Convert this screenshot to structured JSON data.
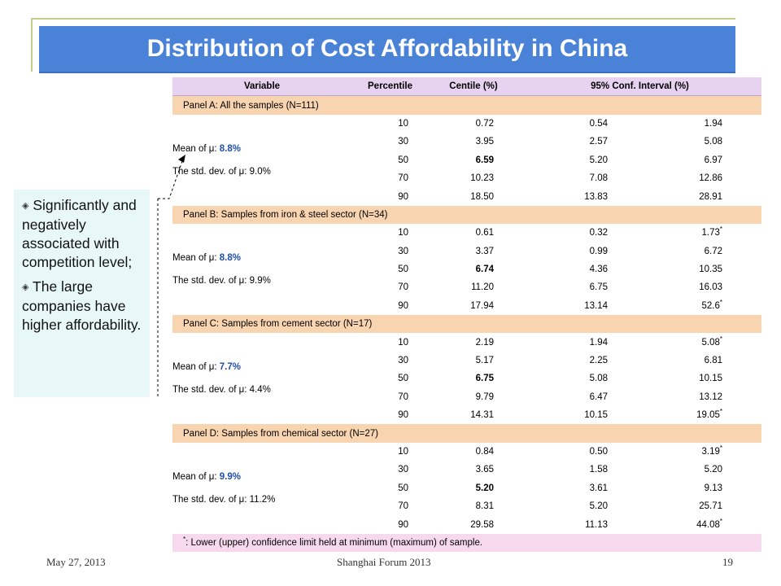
{
  "slide": {
    "title": "Distribution of Cost Affordability in China",
    "date": "May 27, 2013",
    "forum": "Shanghai Forum 2013",
    "page_number": "19"
  },
  "callout": {
    "bullets": [
      "Significantly and negatively associated with competition level;",
      "The large companies have higher affordability."
    ]
  },
  "table": {
    "headers": [
      "Variable",
      "Percentile",
      "Centile (%)",
      "95% Conf. Interval (%)"
    ],
    "panels": [
      {
        "title": "Panel A: All the samples (N=111)",
        "mean_label": "Mean of μ: ",
        "mean_value": "8.8%",
        "std_label": "The std. dev. of μ: 9.0%",
        "rows": [
          {
            "percentile": "10",
            "centile": "0.72",
            "lower": "0.54",
            "upper": "1.94",
            "star": ""
          },
          {
            "percentile": "30",
            "centile": "3.95",
            "lower": "2.57",
            "upper": "5.08",
            "star": ""
          },
          {
            "percentile": "50",
            "centile": "6.59",
            "lower": "5.20",
            "upper": "6.97",
            "star": ""
          },
          {
            "percentile": "70",
            "centile": "10.23",
            "lower": "7.08",
            "upper": "12.86",
            "star": ""
          },
          {
            "percentile": "90",
            "centile": "18.50",
            "lower": "13.83",
            "upper": "28.91",
            "star": ""
          }
        ]
      },
      {
        "title": "Panel B: Samples from iron & steel sector (N=34)",
        "mean_label": "Mean of μ: ",
        "mean_value": "8.8%",
        "std_label": "The std. dev. of μ: 9.9%",
        "rows": [
          {
            "percentile": "10",
            "centile": "0.61",
            "lower": "0.32",
            "upper": "1.73",
            "star": "*"
          },
          {
            "percentile": "30",
            "centile": "3.37",
            "lower": "0.99",
            "upper": "6.72",
            "star": ""
          },
          {
            "percentile": "50",
            "centile": "6.74",
            "lower": "4.36",
            "upper": "10.35",
            "star": ""
          },
          {
            "percentile": "70",
            "centile": "11.20",
            "lower": "6.75",
            "upper": "16.03",
            "star": ""
          },
          {
            "percentile": "90",
            "centile": "17.94",
            "lower": "13.14",
            "upper": "52.6",
            "star": "*"
          }
        ]
      },
      {
        "title": "Panel C: Samples from cement sector (N=17)",
        "mean_label": "Mean of μ: ",
        "mean_value": "7.7%",
        "std_label": "The std. dev. of μ: 4.4%",
        "rows": [
          {
            "percentile": "10",
            "centile": "2.19",
            "lower": "1.94",
            "upper": "5.08",
            "star": "*"
          },
          {
            "percentile": "30",
            "centile": "5.17",
            "lower": "2.25",
            "upper": "6.81",
            "star": ""
          },
          {
            "percentile": "50",
            "centile": "6.75",
            "lower": "5.08",
            "upper": "10.15",
            "star": ""
          },
          {
            "percentile": "70",
            "centile": "9.79",
            "lower": "6.47",
            "upper": "13.12",
            "star": ""
          },
          {
            "percentile": "90",
            "centile": "14.31",
            "lower": "10.15",
            "upper": "19.05",
            "star": "*"
          }
        ]
      },
      {
        "title": "Panel D: Samples from chemical sector (N=27)",
        "mean_label": "Mean of μ: ",
        "mean_value": "9.9%",
        "std_label": "The std. dev. of μ: 11.2%",
        "rows": [
          {
            "percentile": "10",
            "centile": "0.84",
            "lower": "0.50",
            "upper": "3.19",
            "star": "*"
          },
          {
            "percentile": "30",
            "centile": "3.65",
            "lower": "1.58",
            "upper": "5.20",
            "star": ""
          },
          {
            "percentile": "50",
            "centile": "5.20",
            "lower": "3.61",
            "upper": "9.13",
            "star": ""
          },
          {
            "percentile": "70",
            "centile": "8.31",
            "lower": "5.20",
            "upper": "25.71",
            "star": ""
          },
          {
            "percentile": "90",
            "centile": "29.58",
            "lower": "11.13",
            "upper": "44.08",
            "star": "*"
          }
        ]
      }
    ],
    "footnote_star": "*",
    "footnote": ": Lower (upper) confidence limit held at minimum (maximum)  of sample."
  },
  "colors": {
    "title_bar": "#4a82d8",
    "header_row": "#e7d2f0",
    "panel_row": "#f8d4b0",
    "footnote_row": "#f7d9ee",
    "callout_bg": "#e8f7f7",
    "highlight_text": "#1f4ea8"
  }
}
